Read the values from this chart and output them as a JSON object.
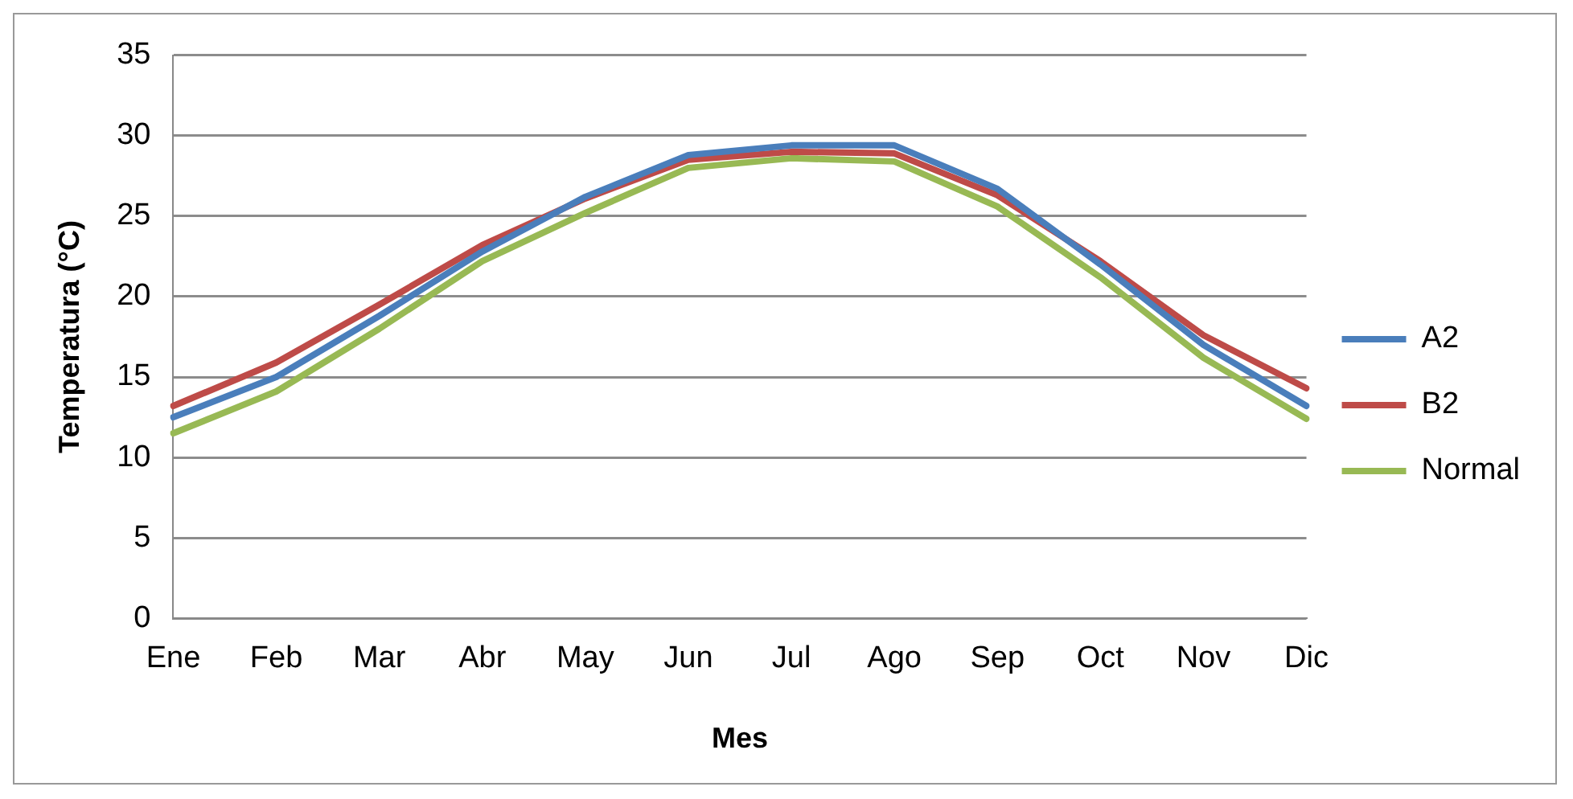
{
  "chart_data": {
    "type": "line",
    "xlabel": "Mes",
    "ylabel": "Temperatura (°C)",
    "categories": [
      "Ene",
      "Feb",
      "Mar",
      "Abr",
      "May",
      "Jun",
      "Jul",
      "Ago",
      "Sep",
      "Oct",
      "Nov",
      "Dic"
    ],
    "series": [
      {
        "name": "A2",
        "color": "#4a7ebb",
        "values": [
          12.5,
          15,
          18.8,
          22.8,
          26.2,
          28.8,
          29.4,
          29.4,
          26.7,
          22,
          17,
          13.2
        ]
      },
      {
        "name": "B2",
        "color": "#be4b48",
        "values": [
          13.2,
          15.9,
          19.5,
          23.2,
          26.1,
          28.5,
          29,
          28.9,
          26.3,
          22.2,
          17.6,
          14.3
        ]
      },
      {
        "name": "Normal",
        "color": "#98b954",
        "values": [
          11.5,
          14.1,
          18,
          22.2,
          25.2,
          28,
          28.6,
          28.4,
          25.6,
          21.2,
          16.2,
          12.4
        ]
      }
    ],
    "ylim": [
      0,
      35
    ],
    "yticks": [
      0,
      5,
      10,
      15,
      20,
      25,
      30,
      35
    ],
    "grid": "y",
    "legend": "right",
    "marker": "none",
    "line_style": "solid"
  }
}
